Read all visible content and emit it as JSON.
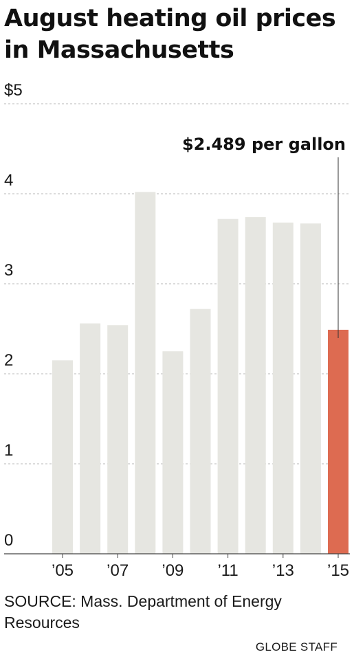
{
  "title": "August heating oil prices in Massachusetts",
  "source": "SOURCE: Mass. Department of Energy Resources",
  "credit": "GLOBE STAFF",
  "colors": {
    "bar": "#e6e6e1",
    "highlight": "#dd6b51",
    "grid": "#b8b8b8",
    "axis": "#444444",
    "text": "#1a1a1a"
  },
  "chart_data": {
    "type": "bar",
    "categories": [
      "2005",
      "2006",
      "2007",
      "2008",
      "2009",
      "2010",
      "2011",
      "2012",
      "2013",
      "2014",
      "2015"
    ],
    "values": [
      2.15,
      2.56,
      2.54,
      4.02,
      2.25,
      2.72,
      3.72,
      3.74,
      3.68,
      3.67,
      2.489
    ],
    "x_tick_labels": [
      "’05",
      "",
      "’07",
      "",
      "’09",
      "",
      "’11",
      "",
      "’13",
      "",
      "’15"
    ],
    "y_ticks": [
      0,
      1,
      2,
      3,
      4,
      5
    ],
    "y_tick_labels": [
      "0",
      "1",
      "2",
      "3",
      "4",
      "$5"
    ],
    "ylim": [
      0,
      5
    ],
    "grid": true,
    "highlight_index": 10,
    "annotation": {
      "text": "$2.489 per gallon",
      "target_index": 10
    },
    "title": "August heating oil prices in Massachusetts",
    "xlabel": "",
    "ylabel": ""
  }
}
